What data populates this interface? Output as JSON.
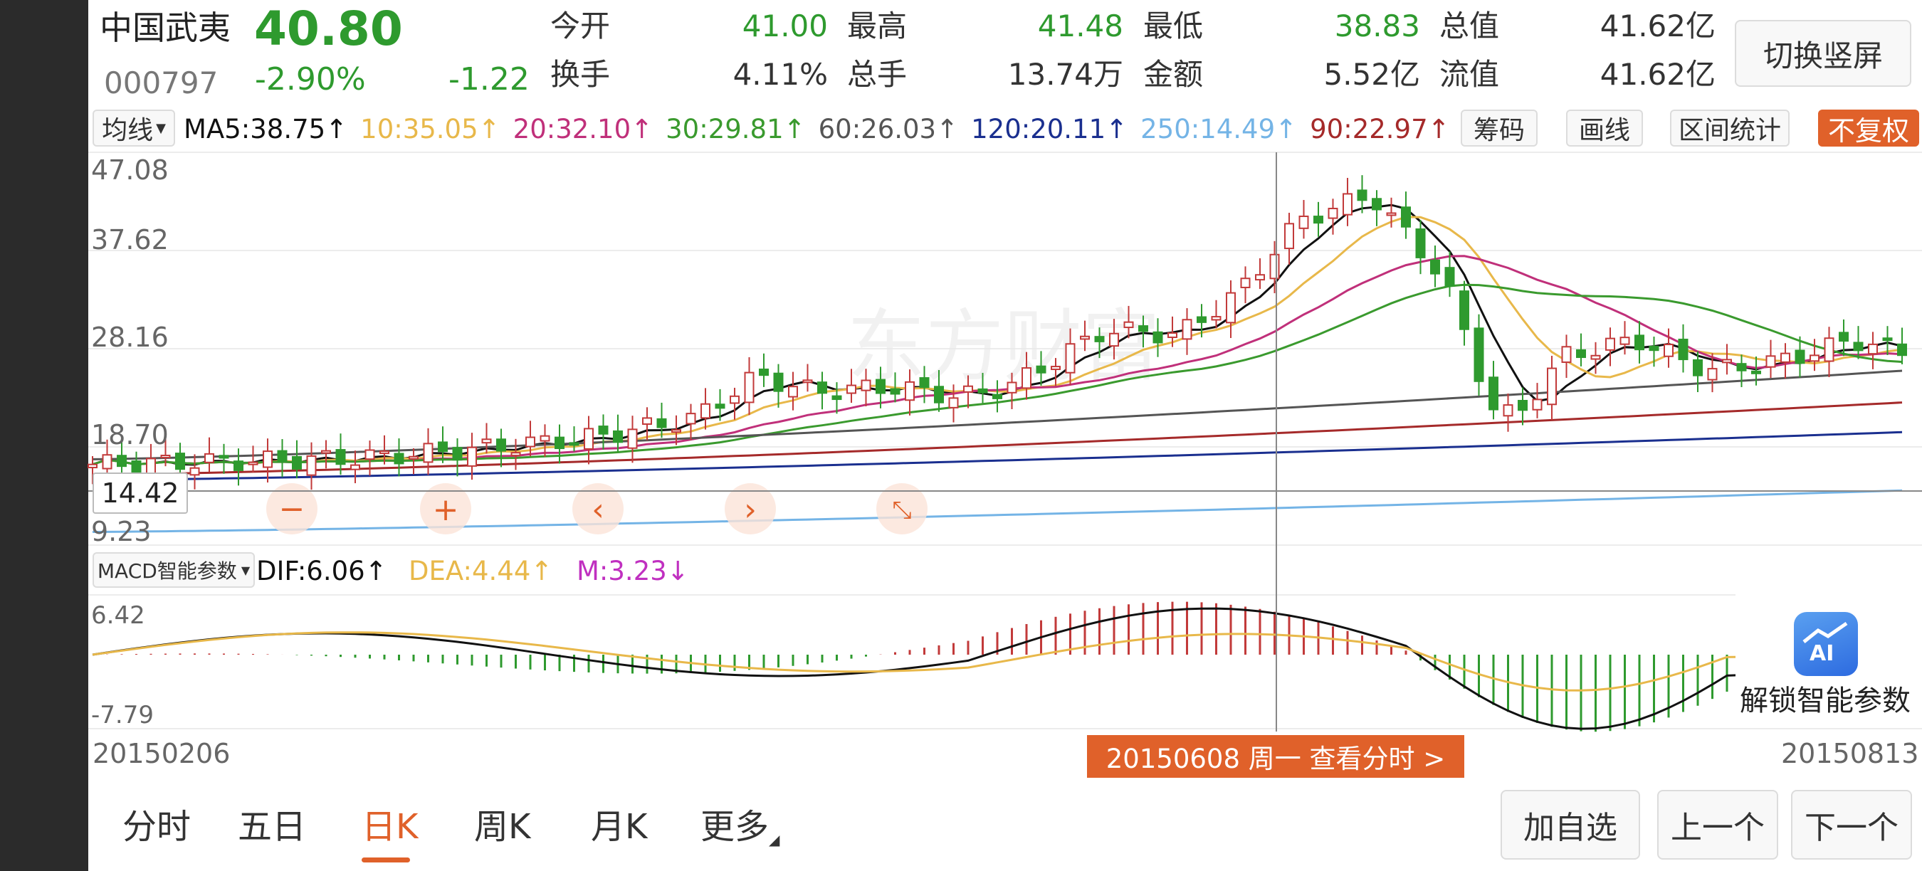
{
  "stock": {
    "name": "中国武夷",
    "price": "40.80",
    "code": "000797",
    "change_pct": "-2.90%",
    "change_abs": "-1.22",
    "colors": {
      "down": "#2e9a2e",
      "up": "#c23a3a"
    }
  },
  "stats": [
    {
      "label": "今开",
      "value": "41.00",
      "value_color": "#2e9a2e"
    },
    {
      "label": "最高",
      "value": "41.48",
      "value_color": "#2e9a2e"
    },
    {
      "label": "最低",
      "value": "38.83",
      "value_color": "#2e9a2e"
    },
    {
      "label": "总值",
      "value": "41.62亿",
      "value_color": "#333333"
    },
    {
      "label": "换手",
      "value": "4.11%",
      "value_color": "#333333"
    },
    {
      "label": "总手",
      "value": "13.74万",
      "value_color": "#333333"
    },
    {
      "label": "金额",
      "value": "5.52亿",
      "value_color": "#333333"
    },
    {
      "label": "流值",
      "value": "41.62亿",
      "value_color": "#333333"
    }
  ],
  "toggle_orientation_label": "切换竖屏",
  "ma_selector_label": "均线",
  "ma_values": [
    {
      "text": "MA5:38.75↑",
      "color": "#111111"
    },
    {
      "text": "10:35.05↑",
      "color": "#e8b84a"
    },
    {
      "text": "20:32.10↑",
      "color": "#c0307a"
    },
    {
      "text": "30:29.81↑",
      "color": "#3a9a2e"
    },
    {
      "text": "60:26.03↑",
      "color": "#555555"
    },
    {
      "text": "120:20.11↑",
      "color": "#1a2f8f"
    },
    {
      "text": "250:14.49↑",
      "color": "#74b4e6"
    },
    {
      "text": "90:22.97↑",
      "color": "#a52a2a"
    }
  ],
  "toolbar": {
    "chips_label": "筹码",
    "draw_label": "画线",
    "range_stats_label": "区间统计",
    "no_adjust_label": "不复权"
  },
  "price_axis": [
    "47.08",
    "37.62",
    "28.16",
    "18.70",
    "9.23"
  ],
  "crosshair_price": "14.42",
  "macd": {
    "selector_label": "MACD智能参数",
    "dif": "DIF:6.06↑",
    "dea": "DEA:4.44↑",
    "m": "M:3.23↓",
    "axis_top": "6.42",
    "axis_bottom": "-7.79",
    "dif_color": "#111111",
    "dea_color": "#e8b84a",
    "m_color": "#c030c0"
  },
  "date_start": "20150206",
  "date_end": "20150813",
  "crosshair_date_label": "20150608 周一 查看分时 >",
  "ai_label": "解锁智能参数",
  "ai_badge": "AI",
  "tabs": [
    {
      "label": "分时",
      "active": false
    },
    {
      "label": "五日",
      "active": false
    },
    {
      "label": "日K",
      "active": true
    },
    {
      "label": "周K",
      "active": false
    },
    {
      "label": "月K",
      "active": false
    },
    {
      "label": "更多",
      "active": false
    }
  ],
  "accent_color": "#e0612a",
  "actions": {
    "add_watchlist": "加自选",
    "prev": "上一个",
    "next": "下一个"
  }
}
